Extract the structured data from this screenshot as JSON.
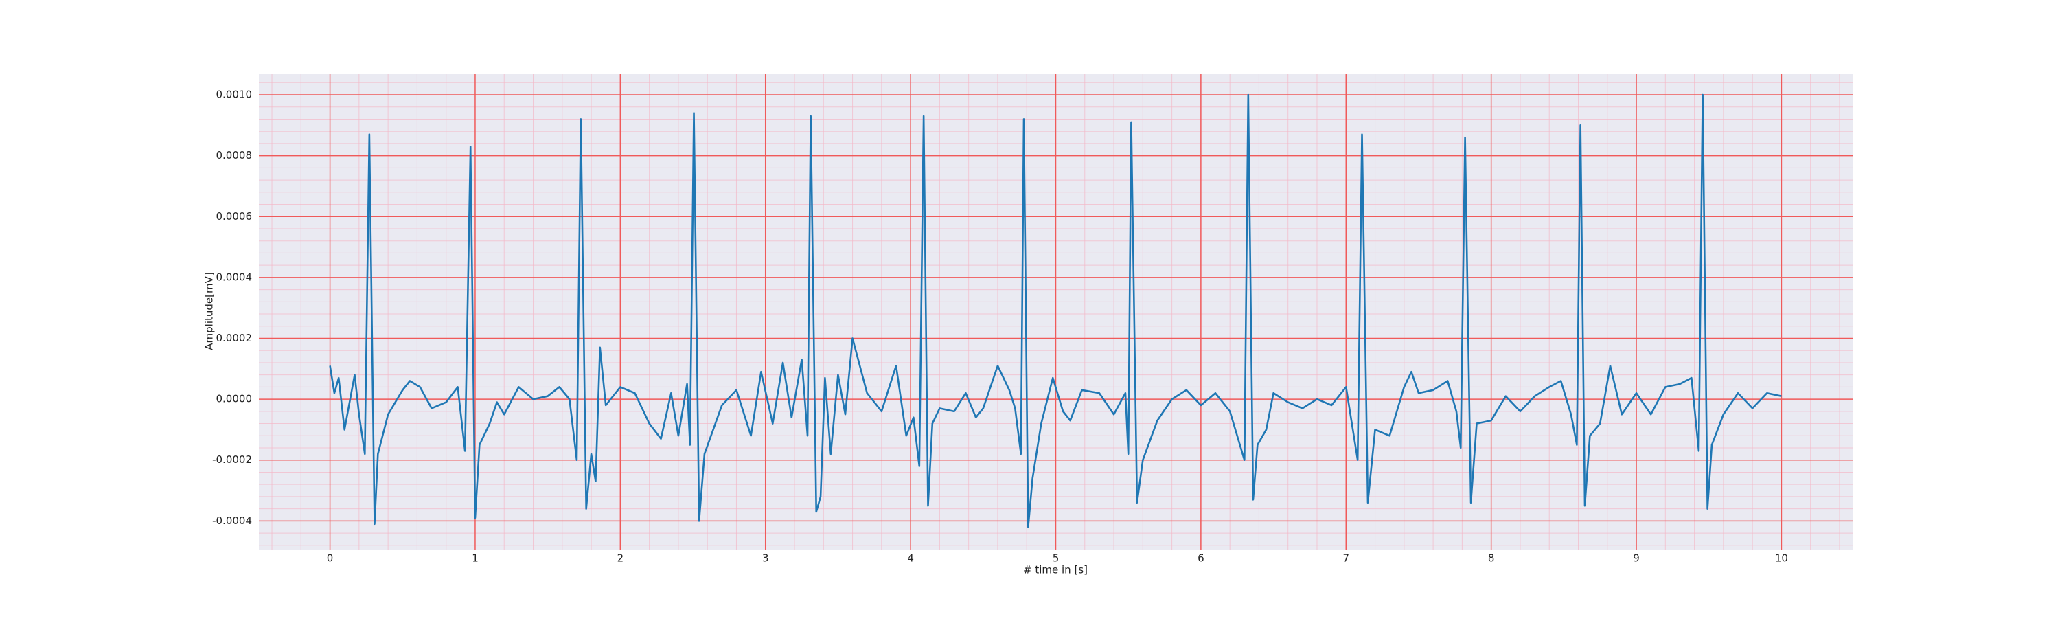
{
  "chart_data": {
    "type": "line",
    "xlabel": "# time in [s]",
    "ylabel": "Amplitude[mV]",
    "x": [
      0,
      0.03,
      0.06,
      0.1,
      0.17,
      0.2,
      0.24,
      0.271,
      0.307,
      0.33,
      0.4,
      0.5,
      0.55,
      0.62,
      0.7,
      0.8,
      0.88,
      0.93,
      0.968,
      1.0,
      1.03,
      1.1,
      1.15,
      1.2,
      1.3,
      1.4,
      1.5,
      1.58,
      1.65,
      1.7,
      1.728,
      1.765,
      1.8,
      1.83,
      1.86,
      1.9,
      2.0,
      2.1,
      2.2,
      2.28,
      2.35,
      2.4,
      2.46,
      2.48,
      2.507,
      2.543,
      2.58,
      2.7,
      2.8,
      2.9,
      2.97,
      3.05,
      3.12,
      3.18,
      3.25,
      3.29,
      3.312,
      3.35,
      3.38,
      3.41,
      3.45,
      3.5,
      3.55,
      3.6,
      3.7,
      3.8,
      3.9,
      3.97,
      4.02,
      4.06,
      4.09,
      4.12,
      4.15,
      4.2,
      4.3,
      4.38,
      4.45,
      4.5,
      4.6,
      4.68,
      4.72,
      4.76,
      4.78,
      4.81,
      4.84,
      4.9,
      4.98,
      5.05,
      5.1,
      5.18,
      5.3,
      5.4,
      5.48,
      5.5,
      5.52,
      5.56,
      5.6,
      5.7,
      5.8,
      5.9,
      6.0,
      6.1,
      6.2,
      6.3,
      6.326,
      6.36,
      6.39,
      6.45,
      6.5,
      6.6,
      6.7,
      6.8,
      6.9,
      7.0,
      7.08,
      7.11,
      7.15,
      7.2,
      7.3,
      7.4,
      7.45,
      7.5,
      7.6,
      7.7,
      7.76,
      7.79,
      7.82,
      7.86,
      7.9,
      8.0,
      8.1,
      8.2,
      8.3,
      8.4,
      8.48,
      8.55,
      8.59,
      8.615,
      8.645,
      8.68,
      8.75,
      8.82,
      8.9,
      9.0,
      9.1,
      9.2,
      9.3,
      9.38,
      9.43,
      9.457,
      9.49,
      9.52,
      9.6,
      9.7,
      9.8,
      9.9,
      10.0
    ],
    "series": [
      {
        "color": "#1f77b4",
        "values": [
          0.00011,
          2e-05,
          7e-05,
          -0.0001,
          8e-05,
          -5e-05,
          -0.00018,
          0.00087,
          -0.00041,
          -0.00018,
          -5e-05,
          3e-05,
          6e-05,
          4e-05,
          -3e-05,
          -1e-05,
          4e-05,
          -0.00017,
          0.00083,
          -0.00039,
          -0.00015,
          -8e-05,
          -1e-05,
          -5e-05,
          4e-05,
          0,
          1e-05,
          4e-05,
          0,
          -0.0002,
          0.00092,
          -0.00036,
          -0.00018,
          -0.00027,
          0.00017,
          -2e-05,
          4e-05,
          2e-05,
          -8e-05,
          -0.00013,
          2e-05,
          -0.00012,
          5e-05,
          -0.00015,
          0.00094,
          -0.0004,
          -0.00018,
          -2e-05,
          3e-05,
          -0.00012,
          9e-05,
          -8e-05,
          0.00012,
          -6e-05,
          0.00013,
          -0.00012,
          0.00093,
          -0.00037,
          -0.00032,
          7e-05,
          -0.00018,
          8e-05,
          -5e-05,
          0.0002,
          2e-05,
          -4e-05,
          0.00011,
          -0.00012,
          -6e-05,
          -0.00022,
          0.00093,
          -0.00035,
          -8e-05,
          -3e-05,
          -4e-05,
          2e-05,
          -6e-05,
          -3e-05,
          0.00011,
          3e-05,
          -3e-05,
          -0.00018,
          0.00092,
          -0.00042,
          -0.00026,
          -8e-05,
          7e-05,
          -4e-05,
          -7e-05,
          3e-05,
          2e-05,
          -5e-05,
          2e-05,
          -0.00018,
          0.00091,
          -0.00034,
          -0.0002,
          -7e-05,
          0,
          3e-05,
          -2e-05,
          2e-05,
          -4e-05,
          -0.0002,
          0.001,
          -0.00033,
          -0.00015,
          -0.0001,
          2e-05,
          -1e-05,
          -3e-05,
          0,
          -2e-05,
          4e-05,
          -0.0002,
          0.00087,
          -0.00034,
          -0.0001,
          -0.00012,
          4e-05,
          9e-05,
          2e-05,
          3e-05,
          6e-05,
          -4e-05,
          -0.00016,
          0.00086,
          -0.00034,
          -8e-05,
          -7e-05,
          1e-05,
          -4e-05,
          1e-05,
          4e-05,
          6e-05,
          -5e-05,
          -0.00015,
          0.0009,
          -0.00035,
          -0.00012,
          -8e-05,
          0.00011,
          -5e-05,
          2e-05,
          -5e-05,
          4e-05,
          5e-05,
          7e-05,
          -0.00017,
          0.001,
          -0.00036,
          -0.00015,
          -5e-05,
          2e-05,
          -3e-05,
          2e-05,
          1e-05
        ]
      }
    ],
    "xlim": [
      -0.49,
      10.49
    ],
    "ylim": [
      -0.000494,
      0.00107
    ],
    "xticks": [
      0,
      1,
      2,
      3,
      4,
      5,
      6,
      7,
      8,
      9,
      10
    ],
    "yticks": [
      {
        "value": -0.0004,
        "label": "-0.0004"
      },
      {
        "value": -0.0002,
        "label": "-0.0002"
      },
      {
        "value": 0,
        "label": "0.0000"
      },
      {
        "value": 0.0002,
        "label": "0.0002"
      },
      {
        "value": 0.0004,
        "label": "0.0004"
      },
      {
        "value": 0.0006,
        "label": "0.0006"
      },
      {
        "value": 0.0008,
        "label": "0.0008"
      },
      {
        "value": 0.001,
        "label": "0.0010"
      }
    ],
    "grid": true,
    "minor_grid": true,
    "grid_color": "#f05a5a",
    "minor_grid_color": "#f4b8c8",
    "background": "#eaeaf2"
  }
}
